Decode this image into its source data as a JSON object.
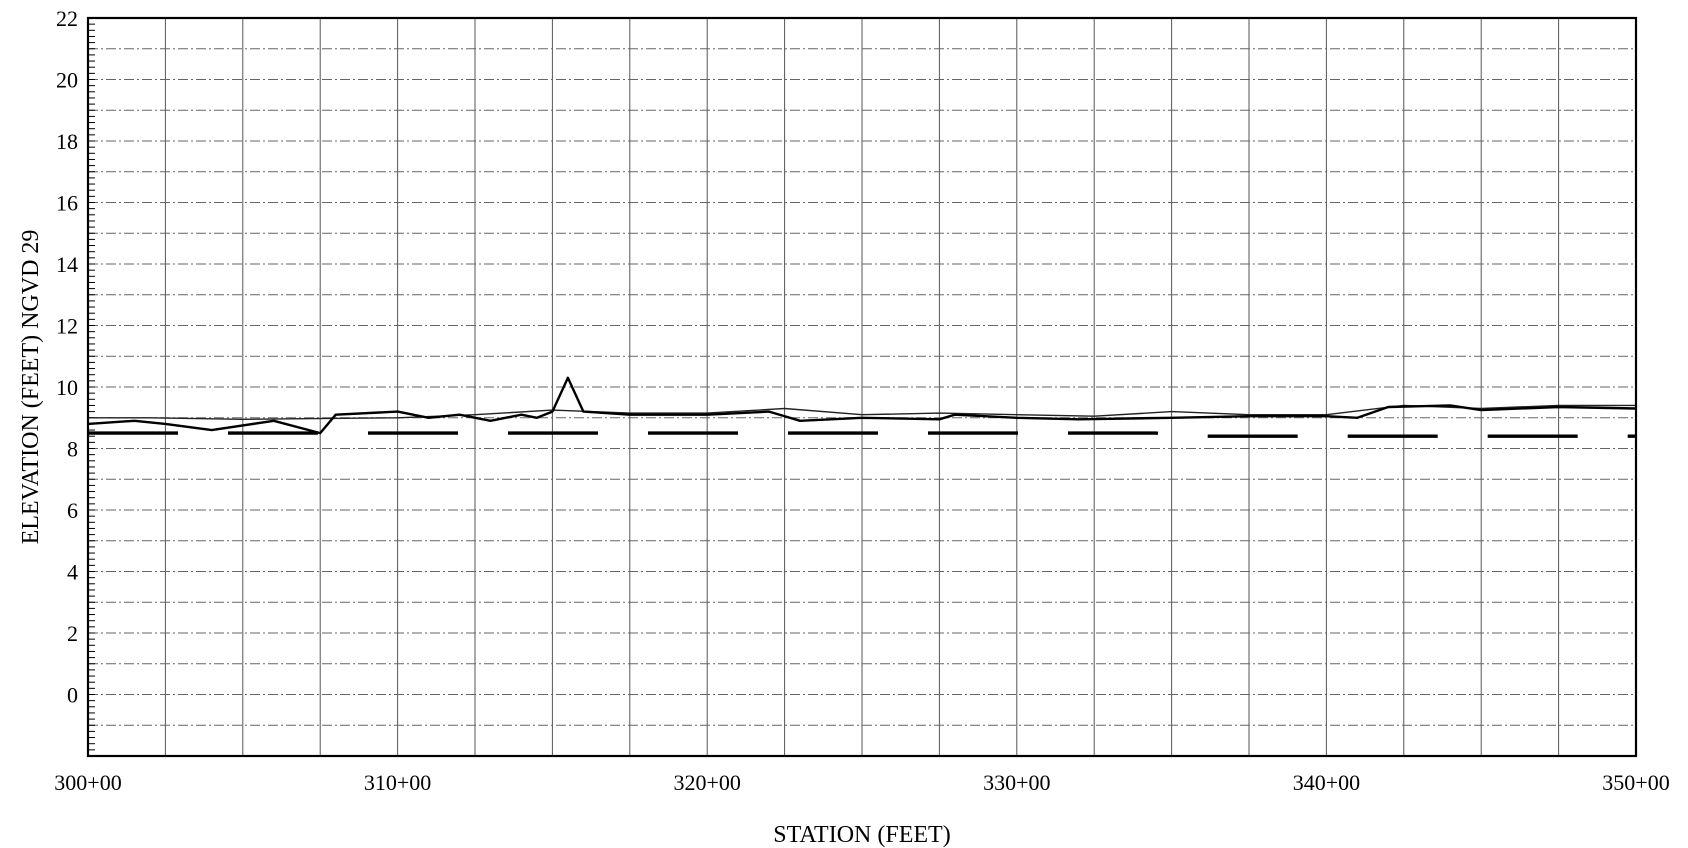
{
  "chart_data": {
    "type": "line",
    "xlabel": "STATION (FEET)",
    "ylabel": "ELEVATION (FEET) NGVD 29",
    "xlim": [
      30000,
      35000
    ],
    "ylim": [
      -2,
      22
    ],
    "grid": true,
    "x_ticks": [
      {
        "value": 30000,
        "label": "300+00"
      },
      {
        "value": 31000,
        "label": "310+00"
      },
      {
        "value": 32000,
        "label": "320+00"
      },
      {
        "value": 33000,
        "label": "330+00"
      },
      {
        "value": 34000,
        "label": "340+00"
      },
      {
        "value": 35000,
        "label": "350+00"
      }
    ],
    "y_ticks": [
      {
        "value": 0,
        "label": "0"
      },
      {
        "value": 2,
        "label": "2"
      },
      {
        "value": 4,
        "label": "4"
      },
      {
        "value": 6,
        "label": "6"
      },
      {
        "value": 8,
        "label": "8"
      },
      {
        "value": 10,
        "label": "10"
      },
      {
        "value": 12,
        "label": "12"
      },
      {
        "value": 14,
        "label": "14"
      },
      {
        "value": 16,
        "label": "16"
      },
      {
        "value": 18,
        "label": "18"
      },
      {
        "value": 20,
        "label": "20"
      },
      {
        "value": 22,
        "label": "22"
      }
    ],
    "series": [
      {
        "style": "thin-solid",
        "x": [
          30000,
          30200,
          30500,
          31000,
          31250,
          31500,
          31750,
          32000,
          32250,
          32500,
          32750,
          33000,
          33250,
          33500,
          33750,
          34000,
          34250,
          34500,
          34750,
          35000
        ],
        "y": [
          9.0,
          9.0,
          8.95,
          9.0,
          9.1,
          9.25,
          9.15,
          9.15,
          9.3,
          9.1,
          9.15,
          9.1,
          9.05,
          9.2,
          9.1,
          9.1,
          9.4,
          9.3,
          9.4,
          9.4
        ]
      },
      {
        "style": "thick-solid",
        "x": [
          30000,
          30150,
          30250,
          30400,
          30600,
          30750,
          30800,
          31000,
          31100,
          31200,
          31300,
          31400,
          31450,
          31500,
          31550,
          31600,
          31750,
          32000,
          32200,
          32300,
          32500,
          32750,
          32800,
          33000,
          33200,
          33500,
          33750,
          34000,
          34100,
          34200,
          34400,
          34500,
          34750,
          35000
        ],
        "y": [
          8.8,
          8.9,
          8.8,
          8.6,
          8.9,
          8.5,
          9.1,
          9.2,
          9.0,
          9.1,
          8.9,
          9.1,
          9.0,
          9.2,
          10.3,
          9.2,
          9.1,
          9.1,
          9.2,
          8.9,
          9.0,
          8.95,
          9.1,
          9.0,
          8.95,
          9.0,
          9.05,
          9.05,
          9.0,
          9.35,
          9.4,
          9.25,
          9.35,
          9.3
        ]
      },
      {
        "style": "dashed",
        "x": [
          30000,
          33450,
          33500,
          35000
        ],
        "y": [
          8.5,
          8.5,
          8.4,
          8.4
        ]
      }
    ]
  }
}
